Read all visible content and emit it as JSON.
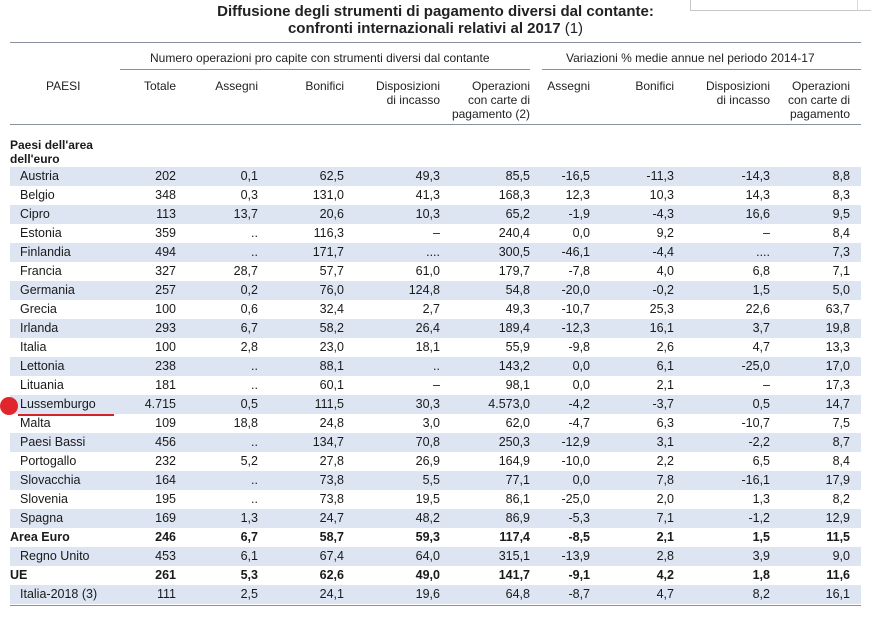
{
  "title_line1": "Diffusione degli strumenti di pagamento diversi dal contante:",
  "title_line2": "confronti internazionali relativi al 2017",
  "title_note": "(1)",
  "group_headers": {
    "left": "Numero operazioni pro capite con strumenti diversi dal contante",
    "right": "Variazioni % medie annue nel periodo 2014-17"
  },
  "columns": {
    "paesi": "PAESI",
    "totale": "Totale",
    "assegni": "Assegni",
    "bonifici": "Bonifici",
    "disp1": "Disposizioni",
    "disp2": "di incasso",
    "op1": "Operazioni",
    "op2": "con carte di",
    "op3": "pagamento (2)",
    "v_assegni": "Assegni",
    "v_bonifici": "Bonifici",
    "v_disp1": "Disposizioni",
    "v_disp2": "di incasso",
    "v_op1": "Operazioni",
    "v_op2": "con carte di",
    "v_op3": "pagamento"
  },
  "section1": "Paesi dell'area",
  "section2": "dell'euro",
  "rows": [
    {
      "name": "Austria",
      "v": [
        "202",
        "0,1",
        "62,5",
        "49,3",
        "85,5",
        "-16,5",
        "-11,3",
        "-14,3",
        "8,8"
      ]
    },
    {
      "name": "Belgio",
      "v": [
        "348",
        "0,3",
        "131,0",
        "41,3",
        "168,3",
        "12,3",
        "10,3",
        "14,3",
        "8,3"
      ]
    },
    {
      "name": "Cipro",
      "v": [
        "113",
        "13,7",
        "20,6",
        "10,3",
        "65,2",
        "-1,9",
        "-4,3",
        "16,6",
        "9,5"
      ]
    },
    {
      "name": "Estonia",
      "v": [
        "359",
        "..",
        "116,3",
        "–",
        "240,4",
        "0,0",
        "9,2",
        "–",
        "8,4"
      ]
    },
    {
      "name": "Finlandia",
      "v": [
        "494",
        "..",
        "171,7",
        "....",
        "300,5",
        "-46,1",
        "-4,4",
        "....",
        "7,3"
      ]
    },
    {
      "name": "Francia",
      "v": [
        "327",
        "28,7",
        "57,7",
        "61,0",
        "179,7",
        "-7,8",
        "4,0",
        "6,8",
        "7,1"
      ]
    },
    {
      "name": "Germania",
      "v": [
        "257",
        "0,2",
        "76,0",
        "124,8",
        "54,8",
        "-20,0",
        "-0,2",
        "1,5",
        "5,0"
      ]
    },
    {
      "name": "Grecia",
      "v": [
        "100",
        "0,6",
        "32,4",
        "2,7",
        "49,3",
        "-10,7",
        "25,3",
        "22,6",
        "63,7"
      ]
    },
    {
      "name": "Irlanda",
      "v": [
        "293",
        "6,7",
        "58,2",
        "26,4",
        "189,4",
        "-12,3",
        "16,1",
        "3,7",
        "19,8"
      ]
    },
    {
      "name": "Italia",
      "v": [
        "100",
        "2,8",
        "23,0",
        "18,1",
        "55,9",
        "-9,8",
        "2,6",
        "4,7",
        "13,3"
      ]
    },
    {
      "name": "Lettonia",
      "v": [
        "238",
        "..",
        "88,1",
        "..",
        "143,2",
        "0,0",
        "6,1",
        "-25,0",
        "17,0"
      ]
    },
    {
      "name": "Lituania",
      "v": [
        "181",
        "..",
        "60,1",
        "–",
        "98,1",
        "0,0",
        "2,1",
        "–",
        "17,3"
      ]
    },
    {
      "name": "Lussemburgo",
      "v": [
        "4.715",
        "0,5",
        "111,5",
        "30,3",
        "4.573,0",
        "-4,2",
        "-3,7",
        "0,5",
        "14,7"
      ]
    },
    {
      "name": "Malta",
      "v": [
        "109",
        "18,8",
        "24,8",
        "3,0",
        "62,0",
        "-4,7",
        "6,3",
        "-10,7",
        "7,5"
      ]
    },
    {
      "name": "Paesi Bassi",
      "v": [
        "456",
        "..",
        "134,7",
        "70,8",
        "250,3",
        "-12,9",
        "3,1",
        "-2,2",
        "8,7"
      ]
    },
    {
      "name": "Portogallo",
      "v": [
        "232",
        "5,2",
        "27,8",
        "26,9",
        "164,9",
        "-10,0",
        "2,2",
        "6,5",
        "8,4"
      ]
    },
    {
      "name": "Slovacchia",
      "v": [
        "164",
        "..",
        "73,8",
        "5,5",
        "77,1",
        "0,0",
        "7,8",
        "-16,1",
        "17,9"
      ]
    },
    {
      "name": "Slovenia",
      "v": [
        "195",
        "..",
        "73,8",
        "19,5",
        "86,1",
        "-25,0",
        "2,0",
        "1,3",
        "8,2"
      ]
    },
    {
      "name": "Spagna",
      "v": [
        "169",
        "1,3",
        "24,7",
        "48,2",
        "86,9",
        "-5,3",
        "7,1",
        "-1,2",
        "12,9"
      ]
    },
    {
      "name": "Area Euro",
      "bold": true,
      "v": [
        "246",
        "6,7",
        "58,7",
        "59,3",
        "117,4",
        "-8,5",
        "2,1",
        "1,5",
        "11,5"
      ]
    },
    {
      "name": "Regno Unito",
      "v": [
        "453",
        "6,1",
        "67,4",
        "64,0",
        "315,1",
        "-13,9",
        "2,8",
        "3,9",
        "9,0"
      ]
    },
    {
      "name": "UE",
      "bold": true,
      "v": [
        "261",
        "5,3",
        "62,6",
        "49,0",
        "141,7",
        "-9,1",
        "4,2",
        "1,8",
        "11,6"
      ]
    },
    {
      "name": "Italia-2018 (3)",
      "v": [
        "111",
        "2,5",
        "24,1",
        "19,6",
        "64,8",
        "-8,7",
        "4,7",
        "8,2",
        "16,1"
      ]
    }
  ]
}
